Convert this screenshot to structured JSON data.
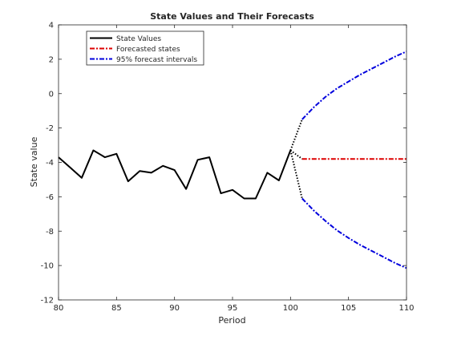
{
  "chart_data": {
    "type": "line",
    "title": "State Values and Their Forecasts",
    "xlabel": "Period",
    "ylabel": "State value",
    "xlim": [
      80,
      110
    ],
    "ylim": [
      -12,
      4
    ],
    "xticks": [
      80,
      85,
      90,
      95,
      100,
      105,
      110
    ],
    "yticks": [
      -12,
      -10,
      -8,
      -6,
      -4,
      -2,
      0,
      2,
      4
    ],
    "grid": false,
    "legend_position": "top-left",
    "series": [
      {
        "name": "State Values",
        "color": "#000000",
        "style": "solid",
        "x": [
          80,
          81,
          82,
          83,
          84,
          85,
          86,
          87,
          88,
          89,
          90,
          91,
          92,
          93,
          94,
          95,
          96,
          97,
          98,
          99,
          100
        ],
        "y": [
          -3.7,
          -4.3,
          -4.9,
          -3.3,
          -3.7,
          -3.5,
          -5.1,
          -4.5,
          -4.6,
          -4.2,
          -4.45,
          -5.55,
          -3.85,
          -3.7,
          -5.8,
          -5.6,
          -6.1,
          -6.1,
          -4.6,
          -5.05,
          -3.3
        ]
      },
      {
        "name": "Forecasted states",
        "color": "#dd0000",
        "style": "dash-dot",
        "x": [
          101,
          102,
          103,
          104,
          105,
          106,
          107,
          108,
          109,
          110
        ],
        "y": [
          -3.8,
          -3.8,
          -3.8,
          -3.8,
          -3.8,
          -3.8,
          -3.8,
          -3.8,
          -3.8,
          -3.8
        ]
      },
      {
        "name": "95% forecast intervals",
        "color": "#0000dd",
        "style": "dash-dot",
        "x": [
          101,
          102,
          103,
          104,
          105,
          106,
          107,
          108,
          109,
          110
        ],
        "y_upper": [
          -1.5,
          -0.8,
          -0.2,
          0.3,
          0.7,
          1.1,
          1.45,
          1.8,
          2.15,
          2.45
        ],
        "y_lower": [
          -6.1,
          -6.8,
          -7.4,
          -7.95,
          -8.4,
          -8.8,
          -9.15,
          -9.5,
          -9.85,
          -10.15
        ]
      }
    ],
    "connectors": {
      "color": "#000000",
      "style": "dotted",
      "from": [
        100,
        -3.3
      ],
      "to_points": [
        [
          101,
          -1.5
        ],
        [
          101,
          -3.8
        ],
        [
          101,
          -6.1
        ]
      ]
    }
  }
}
